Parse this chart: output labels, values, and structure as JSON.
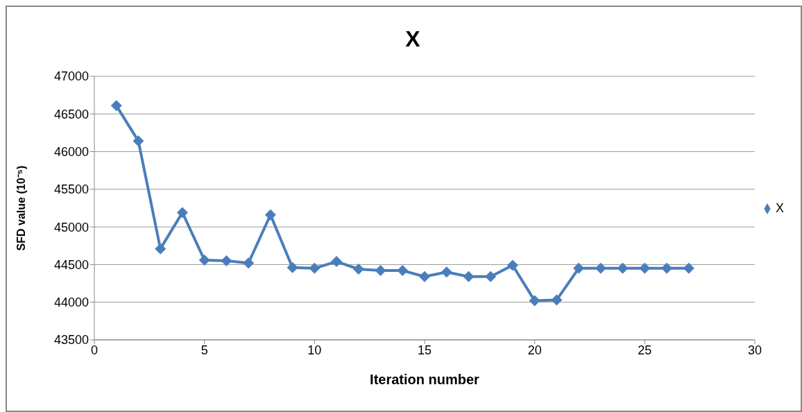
{
  "chart_data": {
    "type": "line",
    "title": "X",
    "xlabel": "Iteration number",
    "ylabel": "SFD value (10⁻⁵)",
    "x": [
      1,
      2,
      3,
      4,
      5,
      6,
      7,
      8,
      9,
      10,
      11,
      12,
      13,
      14,
      15,
      16,
      17,
      18,
      19,
      20,
      21,
      22,
      23,
      24,
      25,
      26,
      27
    ],
    "series": [
      {
        "name": "X",
        "color": "#4a7ebb",
        "values": [
          46610,
          46140,
          44710,
          45190,
          44560,
          44550,
          44520,
          45160,
          44460,
          44450,
          44540,
          44440,
          44420,
          44420,
          44340,
          44400,
          44340,
          44340,
          44490,
          44020,
          44030,
          44450,
          44450,
          44450,
          44450,
          44450,
          44450
        ]
      }
    ],
    "xlim": [
      0,
      30
    ],
    "xticks": [
      0,
      5,
      10,
      15,
      20,
      25,
      30
    ],
    "ylim": [
      43500,
      47000
    ],
    "yticks": [
      43500,
      44000,
      44500,
      45000,
      45500,
      46000,
      46500,
      47000
    ],
    "grid": "y",
    "legend": "right",
    "marker": "diamond",
    "line_style": "solid"
  }
}
